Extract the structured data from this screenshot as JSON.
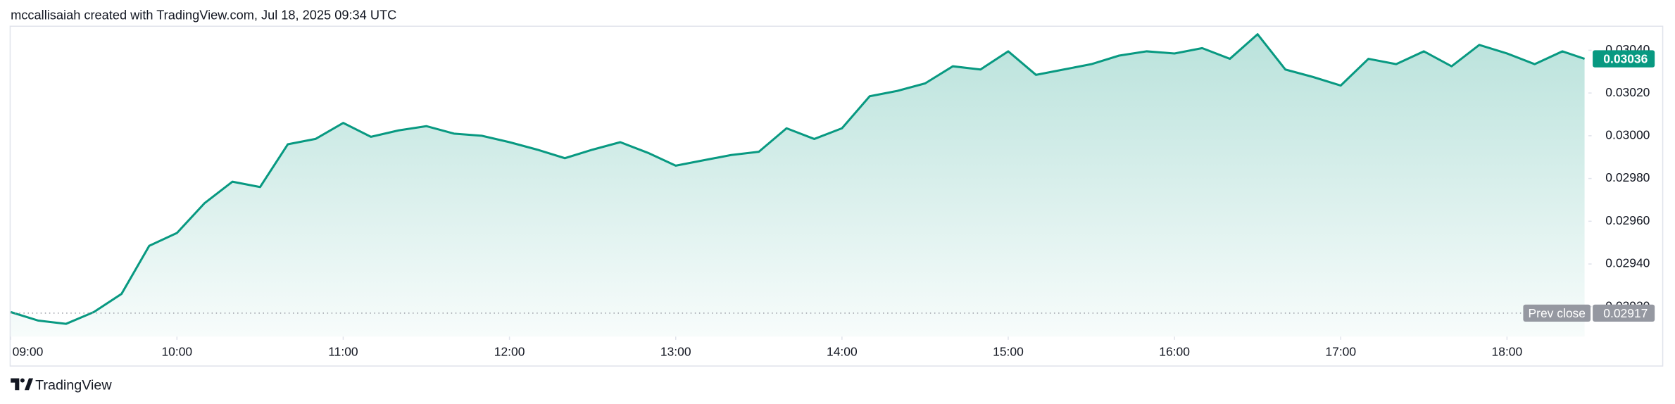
{
  "header": {
    "attribution": "mccallisaiah created with TradingView.com, Jul 18, 2025 09:34 UTC"
  },
  "footer": {
    "brand": "TradingView"
  },
  "chart_data": {
    "type": "area",
    "color": "#089981",
    "x": [
      "09:00",
      "09:10",
      "09:20",
      "09:30",
      "09:40",
      "09:50",
      "10:00",
      "10:10",
      "10:20",
      "10:30",
      "10:40",
      "10:50",
      "11:00",
      "11:10",
      "11:20",
      "11:30",
      "11:40",
      "11:50",
      "12:00",
      "12:10",
      "12:20",
      "12:30",
      "12:40",
      "12:50",
      "13:00",
      "13:10",
      "13:20",
      "13:30",
      "13:40",
      "13:50",
      "14:00",
      "14:10",
      "14:20",
      "14:30",
      "14:40",
      "14:50",
      "15:00",
      "15:10",
      "15:20",
      "15:30",
      "15:40",
      "15:50",
      "16:00",
      "16:10",
      "16:20",
      "16:30",
      "16:40",
      "16:50",
      "17:00",
      "17:10",
      "17:20",
      "17:30",
      "17:40",
      "17:50",
      "18:00",
      "18:10",
      "18:20",
      "18:28"
    ],
    "values": [
      0.029175,
      0.029135,
      0.02912,
      0.029175,
      0.02926,
      0.029485,
      0.029545,
      0.029685,
      0.029785,
      0.02976,
      0.02996,
      0.029985,
      0.03006,
      0.029995,
      0.030025,
      0.030045,
      0.03001,
      0.03,
      0.02997,
      0.029935,
      0.029895,
      0.029935,
      0.02997,
      0.02992,
      0.02986,
      0.029885,
      0.02991,
      0.029925,
      0.030035,
      0.029985,
      0.030035,
      0.030185,
      0.03021,
      0.030245,
      0.030325,
      0.03031,
      0.030395,
      0.030285,
      0.03031,
      0.030335,
      0.030375,
      0.030395,
      0.030385,
      0.03041,
      0.03036,
      0.030475,
      0.03031,
      0.030275,
      0.030235,
      0.03036,
      0.030335,
      0.030395,
      0.030325,
      0.030425,
      0.030385,
      0.030335,
      0.030395,
      0.03036
    ],
    "xlim": [
      "09:00",
      "18:29"
    ],
    "xticks": [
      "09:00",
      "10:00",
      "11:00",
      "12:00",
      "13:00",
      "14:00",
      "15:00",
      "16:00",
      "17:00",
      "18:00"
    ],
    "ylim": [
      0.02906,
      0.03051
    ],
    "yticks": [
      {
        "value": 0.0292,
        "label": "0.02920"
      },
      {
        "value": 0.0294,
        "label": "0.02940"
      },
      {
        "value": 0.0296,
        "label": "0.02960"
      },
      {
        "value": 0.0298,
        "label": "0.02980"
      },
      {
        "value": 0.03,
        "label": "0.03000"
      },
      {
        "value": 0.0302,
        "label": "0.03020"
      },
      {
        "value": 0.0304,
        "label": "0.03040"
      }
    ],
    "last_price": {
      "value": 0.03036,
      "label": "0.03036"
    },
    "prev_close": {
      "name": "Prev close",
      "value": 0.02917,
      "label": "0.02917"
    }
  }
}
